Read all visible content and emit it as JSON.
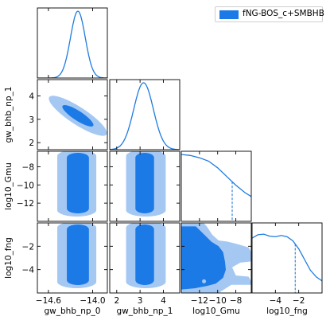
{
  "chart_data": {
    "type": "corner",
    "colors": {
      "line": "#1e7ce0",
      "outer": "#a5c8f3",
      "inner": "#1c7ae6",
      "legend_fill": "#1c7ae6"
    },
    "legend": {
      "label": "fNG-BOS_c+SMBHB",
      "placement": "top-right"
    },
    "parameters": [
      {
        "key": "gw_bhb_np_0",
        "label": "gw_bhb_np_0",
        "range": [
          -14.75,
          -13.8
        ],
        "ticks": [
          -14.6,
          -14.0
        ],
        "tick_labels": [
          "−14.6",
          "−14.0"
        ],
        "axis_shown_on": "x"
      },
      {
        "key": "gw_bhb_np_1",
        "label": "gw_bhb_np_1",
        "range": [
          1.7,
          4.7
        ],
        "ticks": [
          2,
          3,
          4
        ],
        "tick_labels": [
          "2",
          "3",
          "4"
        ],
        "axis_shown_on": "both"
      },
      {
        "key": "log10_Gmu",
        "label": "log10_Gmu",
        "range": [
          -14,
          -6.3
        ],
        "ticks": [
          -12,
          -10,
          -8
        ],
        "tick_labels": [
          "−12",
          "−10",
          "−8"
        ],
        "axis_shown_on": "both"
      },
      {
        "key": "log10_fng",
        "label": "log10_fng",
        "range": [
          -6,
          0
        ],
        "ticks": [
          -4,
          -2
        ],
        "tick_labels": [
          "−4",
          "−2"
        ],
        "axis_shown_on": "both"
      }
    ],
    "marginals": [
      {
        "param": "gw_bhb_np_0",
        "shape": "gaussian",
        "center": -14.2,
        "sigma": 0.1
      },
      {
        "param": "gw_bhb_np_1",
        "shape": "gaussian",
        "center": 3.15,
        "sigma": 0.42
      },
      {
        "param": "log10_Gmu",
        "shape": "curve",
        "x": [
          -14,
          -13,
          -12,
          -11,
          -10,
          -9,
          -8,
          -7,
          -6.3
        ],
        "y": [
          1.0,
          0.985,
          0.95,
          0.9,
          0.8,
          0.67,
          0.54,
          0.43,
          0.37
        ],
        "upper_limit": -8.4
      },
      {
        "param": "log10_fng",
        "shape": "curve",
        "x": [
          -6,
          -5.5,
          -5,
          -4.5,
          -4,
          -3.5,
          -3,
          -2.5,
          -2,
          -1.5,
          -1,
          -0.5,
          0
        ],
        "y": [
          0.82,
          0.87,
          0.88,
          0.85,
          0.84,
          0.86,
          0.84,
          0.78,
          0.66,
          0.5,
          0.34,
          0.24,
          0.18
        ],
        "upper_limit": -2.3
      }
    ],
    "joint_contours": [
      {
        "x": "gw_bhb_np_0",
        "y": "gw_bhb_np_1",
        "kind": "ellipse",
        "center": [
          -14.2,
          3.15
        ],
        "levels": [
          "inner",
          "outer"
        ]
      },
      {
        "x": "gw_bhb_np_0",
        "y": "log10_Gmu",
        "kind": "band",
        "outer_x": [
          -14.48,
          -13.95
        ],
        "inner_x": [
          -14.35,
          -14.05
        ]
      },
      {
        "x": "gw_bhb_np_0",
        "y": "log10_fng",
        "kind": "band",
        "outer_x": [
          -14.48,
          -13.95
        ],
        "inner_x": [
          -14.35,
          -14.05
        ]
      },
      {
        "x": "gw_bhb_np_1",
        "y": "log10_Gmu",
        "kind": "band",
        "outer_x": [
          2.4,
          4.1
        ],
        "inner_x": [
          2.8,
          3.6
        ]
      },
      {
        "x": "gw_bhb_np_1",
        "y": "log10_fng",
        "kind": "band",
        "outer_x": [
          2.4,
          4.1
        ],
        "inner_x": [
          2.8,
          3.6
        ]
      },
      {
        "x": "log10_Gmu",
        "y": "log10_fng",
        "kind": "region",
        "note": "credible regions fill lower-left, bounded by log10_Gmu upper limit"
      }
    ]
  }
}
